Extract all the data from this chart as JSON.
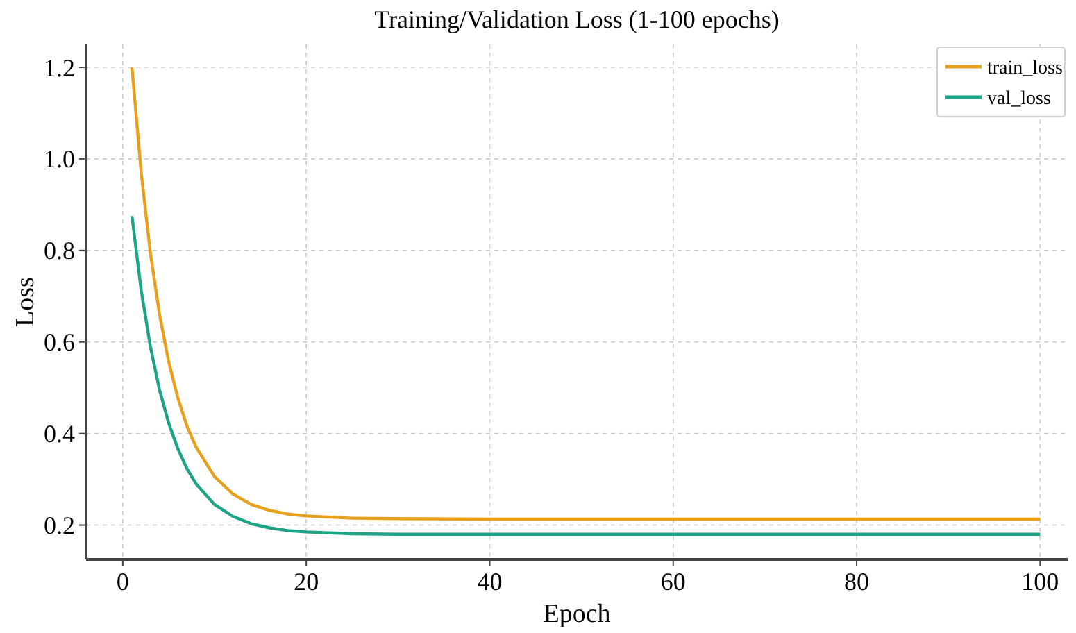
{
  "chart_data": {
    "type": "line",
    "title": "Training/Validation Loss (1-100 epochs)",
    "xlabel": "Epoch",
    "ylabel": "Loss",
    "x": [
      1,
      2,
      3,
      4,
      5,
      6,
      7,
      8,
      10,
      12,
      14,
      16,
      18,
      20,
      25,
      30,
      40,
      60,
      80,
      100
    ],
    "series": [
      {
        "name": "train_loss",
        "color": "#e6a01e",
        "values": [
          1.2,
          0.972,
          0.796,
          0.661,
          0.557,
          0.478,
          0.416,
          0.37,
          0.306,
          0.268,
          0.245,
          0.232,
          0.224,
          0.22,
          0.215,
          0.214,
          0.213,
          0.213,
          0.213,
          0.213
        ]
      },
      {
        "name": "val_loss",
        "color": "#1fa386",
        "values": [
          0.875,
          0.714,
          0.591,
          0.496,
          0.423,
          0.367,
          0.323,
          0.29,
          0.245,
          0.219,
          0.203,
          0.194,
          0.188,
          0.185,
          0.181,
          0.18,
          0.18,
          0.18,
          0.18,
          0.18
        ]
      }
    ],
    "xlim": [
      -4,
      103
    ],
    "ylim": [
      0.125,
      1.25
    ],
    "xticks": [
      0,
      20,
      40,
      60,
      80,
      100
    ],
    "yticks": [
      {
        "value": 0.2,
        "label": "0.2"
      },
      {
        "value": 0.4,
        "label": "0.4"
      },
      {
        "value": 0.6,
        "label": "0.6"
      },
      {
        "value": 0.8,
        "label": "0.8"
      },
      {
        "value": 1,
        "label": "1.0"
      },
      {
        "value": 1.2,
        "label": "1.2"
      }
    ],
    "grid": true,
    "legend": "top right",
    "line_style": "solid",
    "marker": "none"
  }
}
